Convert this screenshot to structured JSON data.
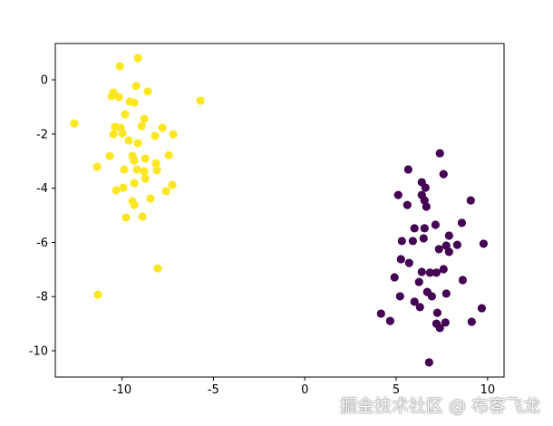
{
  "chart_data": {
    "type": "scatter",
    "title": "",
    "xlabel": "",
    "ylabel": "",
    "xlim": [
      -13.65,
      10.9
    ],
    "ylim": [
      -10.97,
      1.34
    ],
    "xticks": [
      -10,
      -5,
      0,
      5,
      10
    ],
    "yticks": [
      0,
      -2,
      -4,
      -6,
      -8,
      -10
    ],
    "grid": false,
    "series": [
      {
        "color": "#fde725",
        "points": [
          [
            -9.13,
            0.8
          ],
          [
            -10.12,
            0.5
          ],
          [
            -9.23,
            -0.23
          ],
          [
            -8.59,
            -0.43
          ],
          [
            -10.47,
            -0.47
          ],
          [
            -10.57,
            -0.6
          ],
          [
            -10.17,
            -0.64
          ],
          [
            -9.58,
            -0.8
          ],
          [
            -9.33,
            -0.84
          ],
          [
            -5.71,
            -0.77
          ],
          [
            -9.83,
            -1.27
          ],
          [
            -8.78,
            -1.44
          ],
          [
            -12.61,
            -1.61
          ],
          [
            -10.37,
            -1.74
          ],
          [
            -10.07,
            -1.77
          ],
          [
            -8.93,
            -1.71
          ],
          [
            -7.79,
            -1.77
          ],
          [
            -10.47,
            -2.01
          ],
          [
            -9.98,
            -1.97
          ],
          [
            -8.19,
            -2.07
          ],
          [
            -7.2,
            -2.01
          ],
          [
            -9.63,
            -2.24
          ],
          [
            -9.13,
            -2.34
          ],
          [
            -10.67,
            -2.81
          ],
          [
            -9.43,
            -2.81
          ],
          [
            -8.73,
            -2.91
          ],
          [
            -7.44,
            -2.78
          ],
          [
            -9.33,
            -2.98
          ],
          [
            -11.36,
            -3.21
          ],
          [
            -8.14,
            -3.08
          ],
          [
            -9.88,
            -3.31
          ],
          [
            -9.18,
            -3.31
          ],
          [
            -8.78,
            -3.38
          ],
          [
            -8.09,
            -3.34
          ],
          [
            -8.73,
            -3.65
          ],
          [
            -9.33,
            -3.81
          ],
          [
            -10.32,
            -4.08
          ],
          [
            -9.93,
            -3.98
          ],
          [
            -7.25,
            -3.88
          ],
          [
            -7.59,
            -4.11
          ],
          [
            -9.43,
            -4.48
          ],
          [
            -9.33,
            -4.62
          ],
          [
            -8.44,
            -4.38
          ],
          [
            -9.78,
            -5.08
          ],
          [
            -8.88,
            -5.05
          ],
          [
            -8.04,
            -6.96
          ],
          [
            -11.32,
            -7.93
          ]
        ]
      },
      {
        "color": "#440154",
        "points": [
          [
            7.39,
            -2.71
          ],
          [
            5.66,
            -3.31
          ],
          [
            7.59,
            -3.48
          ],
          [
            6.4,
            -3.78
          ],
          [
            6.6,
            -3.98
          ],
          [
            5.11,
            -4.25
          ],
          [
            6.4,
            -4.25
          ],
          [
            9.08,
            -4.45
          ],
          [
            5.61,
            -4.62
          ],
          [
            6.55,
            -4.45
          ],
          [
            6.65,
            -4.68
          ],
          [
            7.15,
            -5.35
          ],
          [
            8.59,
            -5.28
          ],
          [
            6.0,
            -5.48
          ],
          [
            6.55,
            -5.48
          ],
          [
            7.89,
            -5.75
          ],
          [
            5.31,
            -5.95
          ],
          [
            5.91,
            -5.95
          ],
          [
            6.5,
            -5.85
          ],
          [
            9.78,
            -6.05
          ],
          [
            7.34,
            -6.25
          ],
          [
            7.74,
            -6.12
          ],
          [
            8.34,
            -6.09
          ],
          [
            7.89,
            -6.35
          ],
          [
            5.26,
            -6.62
          ],
          [
            5.71,
            -6.76
          ],
          [
            6.4,
            -7.09
          ],
          [
            6.85,
            -7.12
          ],
          [
            7.2,
            -7.12
          ],
          [
            7.59,
            -6.99
          ],
          [
            4.91,
            -7.29
          ],
          [
            6.25,
            -7.46
          ],
          [
            8.64,
            -7.39
          ],
          [
            6.7,
            -7.83
          ],
          [
            6.95,
            -7.99
          ],
          [
            7.74,
            -7.89
          ],
          [
            5.21,
            -7.99
          ],
          [
            6.0,
            -8.19
          ],
          [
            6.3,
            -8.39
          ],
          [
            9.68,
            -8.43
          ],
          [
            4.17,
            -8.63
          ],
          [
            7.25,
            -8.6
          ],
          [
            4.67,
            -8.9
          ],
          [
            7.2,
            -9.0
          ],
          [
            7.39,
            -9.16
          ],
          [
            7.69,
            -8.96
          ],
          [
            9.13,
            -8.93
          ],
          [
            6.8,
            -10.43
          ]
        ]
      }
    ]
  },
  "watermark": "掘金技术社区 @ 布客飞龙"
}
